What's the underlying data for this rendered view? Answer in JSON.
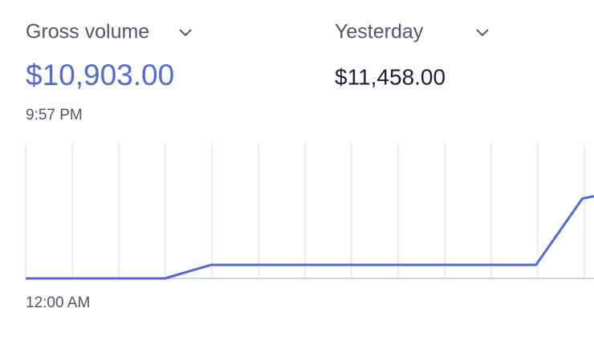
{
  "header": {
    "metric": "Gross volume",
    "value": "$10,903.00",
    "time": "9:57 PM",
    "compare_label": "Yesterday",
    "compare_value": "$11,458.00"
  },
  "chart_data": {
    "type": "line",
    "x": [
      0,
      3,
      4,
      11,
      12,
      12.25
    ],
    "values": [
      0,
      0,
      1800,
      1800,
      10600,
      10903
    ],
    "color": "#5469d4",
    "xlim": [
      0,
      12.25
    ],
    "ylim": [
      0,
      18000
    ],
    "xticks": [
      0,
      1,
      2,
      3,
      4,
      5,
      6,
      7,
      8,
      9,
      10,
      11,
      12
    ],
    "grid": true,
    "start_label": "12:00 AM"
  }
}
